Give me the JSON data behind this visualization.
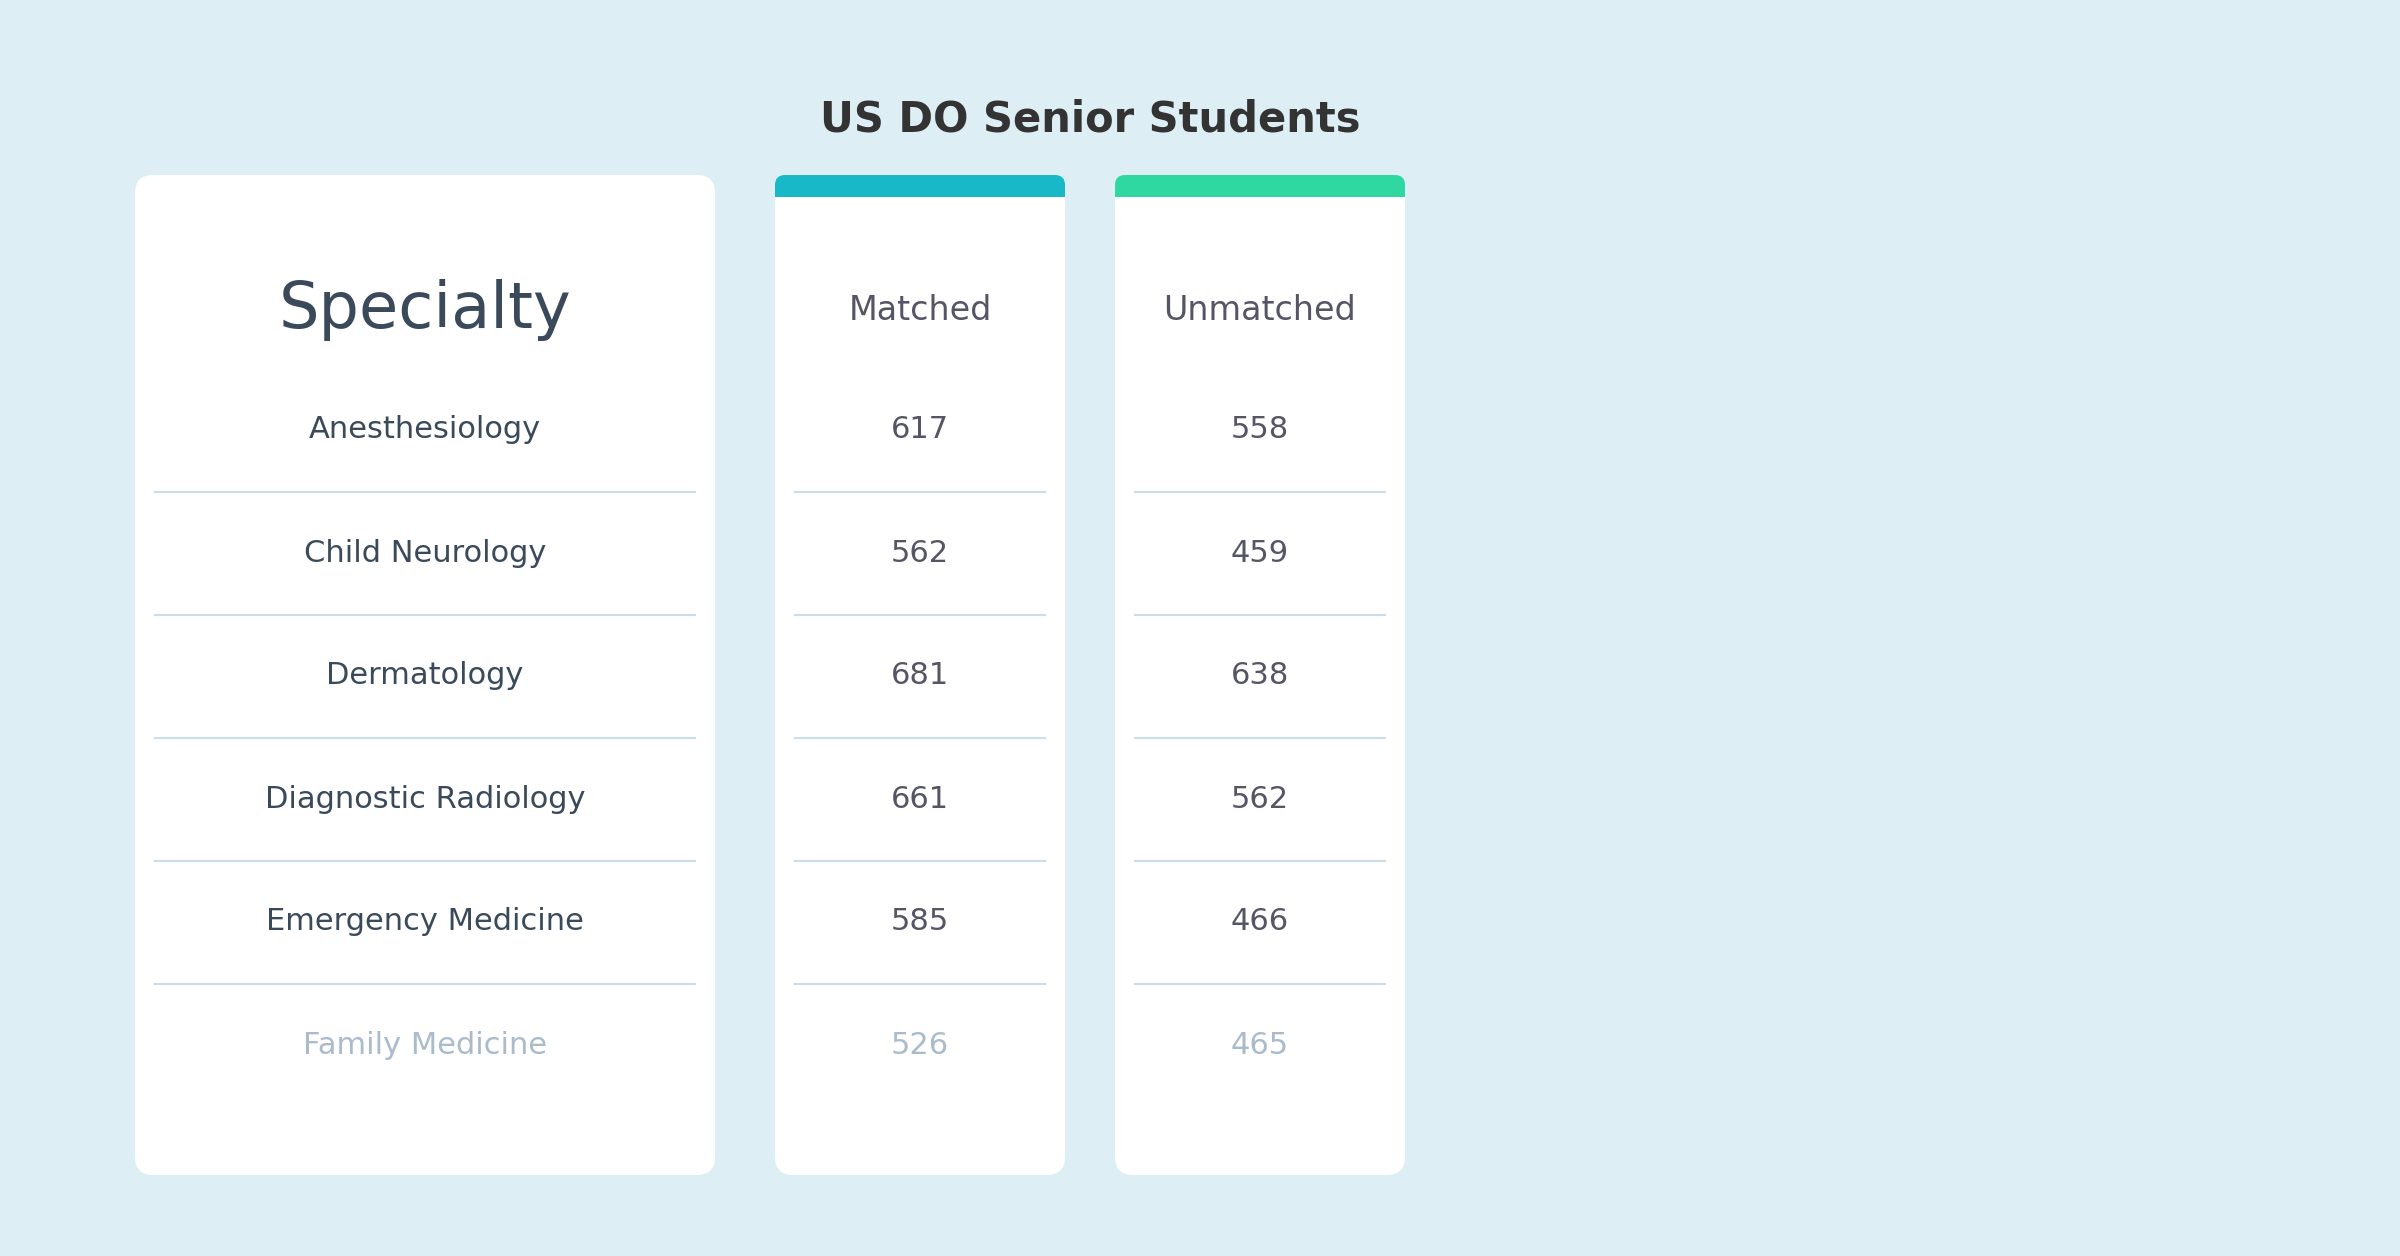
{
  "title": "US DO Senior Students",
  "specialties": [
    "Anesthesiology",
    "Child Neurology",
    "Dermatology",
    "Diagnostic Radiology",
    "Emergency Medicine",
    "Family Medicine"
  ],
  "matched": [
    617,
    562,
    681,
    661,
    585,
    526
  ],
  "unmatched": [
    558,
    459,
    638,
    562,
    466,
    465
  ],
  "bg_color": "#ddeef4",
  "card_bg": "#ffffff",
  "matched_header_color": "#18b8c8",
  "unmatched_header_color": "#2ed8a0",
  "title_color": "#333333",
  "specialty_header_color": "#3a4a5a",
  "specialty_color": "#3a4a5a",
  "family_med_color": "#aabbcc",
  "number_color": "#555566",
  "family_med_number_color": "#aabbcc",
  "header_text_color": "#555566",
  "divider_color": "#ccdde8",
  "title_fontsize": 30,
  "header_fontsize": 24,
  "specialty_title_fontsize": 46,
  "row_fontsize": 22
}
